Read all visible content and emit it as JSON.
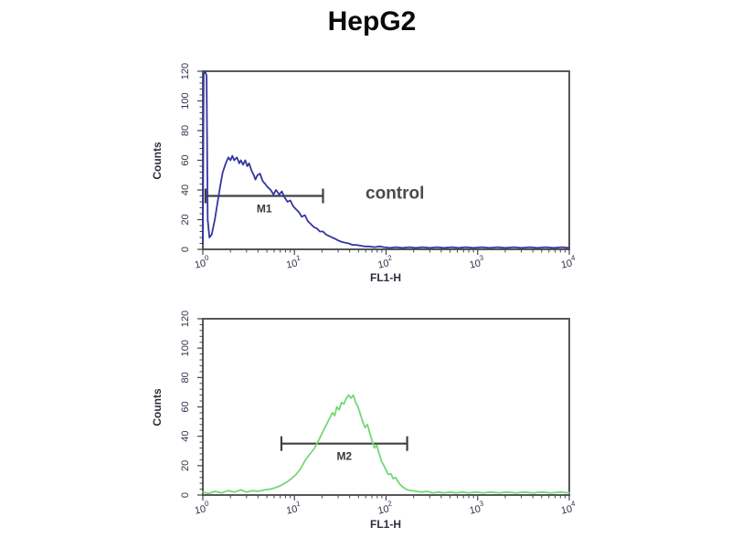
{
  "title": "HepG2",
  "colors": {
    "background": "#ffffff",
    "plot_border": "#575757",
    "axis": "#44444e",
    "marker": "#404040",
    "control_curve": "#3434a4",
    "sample_curve": "#74d874"
  },
  "chart_data": [
    {
      "type": "line",
      "panel": "top",
      "xlabel": "FL1-H",
      "ylabel": "Counts",
      "xscale": "log",
      "xlim": [
        1,
        10000
      ],
      "ylim": [
        0,
        120
      ],
      "x_tick_base": "10",
      "x_tick_exponents": [
        0,
        1,
        2,
        3,
        4
      ],
      "y_ticks": [
        0,
        20,
        40,
        60,
        80,
        100,
        120
      ],
      "y_minor_step": 4,
      "y_major_step": 20,
      "grid": false,
      "legend": false,
      "annotation": {
        "text": "control",
        "x": 125,
        "y": 38
      },
      "region_marker": {
        "label": "M1",
        "x_from": 1.07,
        "x_to": 20.5,
        "y": 36
      },
      "series": [
        {
          "name": "control",
          "color": "#3434a4",
          "points": [
            [
              1.0,
              4
            ],
            [
              1.02,
              118
            ],
            [
              1.06,
              120
            ],
            [
              1.1,
              117
            ],
            [
              1.13,
              20
            ],
            [
              1.18,
              8
            ],
            [
              1.25,
              10
            ],
            [
              1.35,
              20
            ],
            [
              1.45,
              32
            ],
            [
              1.55,
              43
            ],
            [
              1.65,
              52
            ],
            [
              1.78,
              58
            ],
            [
              1.9,
              62
            ],
            [
              2.0,
              60
            ],
            [
              2.1,
              63
            ],
            [
              2.2,
              60
            ],
            [
              2.35,
              62
            ],
            [
              2.5,
              58
            ],
            [
              2.6,
              60
            ],
            [
              2.75,
              57
            ],
            [
              2.9,
              60
            ],
            [
              3.05,
              56
            ],
            [
              3.2,
              58
            ],
            [
              3.4,
              53
            ],
            [
              3.6,
              50
            ],
            [
              3.75,
              47
            ],
            [
              3.95,
              50
            ],
            [
              4.2,
              51
            ],
            [
              4.5,
              46
            ],
            [
              4.8,
              44
            ],
            [
              5.1,
              42
            ],
            [
              5.5,
              40
            ],
            [
              5.9,
              37
            ],
            [
              6.3,
              40
            ],
            [
              6.8,
              37
            ],
            [
              7.3,
              39
            ],
            [
              7.8,
              35
            ],
            [
              8.4,
              32
            ],
            [
              9.0,
              33
            ],
            [
              9.7,
              29
            ],
            [
              10.4,
              27
            ],
            [
              11.2,
              25
            ],
            [
              12.0,
              22
            ],
            [
              13.0,
              23
            ],
            [
              14.0,
              19
            ],
            [
              15.1,
              17
            ],
            [
              16.3,
              15
            ],
            [
              17.6,
              14
            ],
            [
              19.0,
              12
            ],
            [
              20.5,
              12
            ],
            [
              22.1,
              10
            ],
            [
              23.9,
              9
            ],
            [
              25.8,
              8
            ],
            [
              28,
              7
            ],
            [
              30,
              6
            ],
            [
              33,
              5
            ],
            [
              36,
              4.5
            ],
            [
              39,
              4
            ],
            [
              43,
              3
            ],
            [
              47,
              3
            ],
            [
              52,
              2.5
            ],
            [
              58,
              2
            ],
            [
              65,
              2
            ],
            [
              75,
              1.5
            ],
            [
              85,
              2
            ],
            [
              95,
              1.5
            ],
            [
              110,
              1
            ],
            [
              130,
              1.5
            ],
            [
              150,
              1
            ],
            [
              180,
              1.5
            ],
            [
              210,
              1
            ],
            [
              250,
              1.5
            ],
            [
              300,
              1
            ],
            [
              360,
              1.5
            ],
            [
              430,
              1
            ],
            [
              520,
              1.5
            ],
            [
              620,
              1
            ],
            [
              750,
              1.5
            ],
            [
              900,
              1
            ],
            [
              1100,
              1.5
            ],
            [
              1350,
              1
            ],
            [
              1650,
              1.5
            ],
            [
              2000,
              1
            ],
            [
              2500,
              1.5
            ],
            [
              3000,
              1
            ],
            [
              3700,
              1.5
            ],
            [
              4500,
              1
            ],
            [
              5500,
              1.5
            ],
            [
              6800,
              1
            ],
            [
              8300,
              1.5
            ],
            [
              10000,
              1
            ]
          ]
        }
      ]
    },
    {
      "type": "line",
      "panel": "bottom",
      "xlabel": "FL1-H",
      "ylabel": "Counts",
      "xscale": "log",
      "xlim": [
        1,
        10000
      ],
      "ylim": [
        0,
        120
      ],
      "x_tick_base": "10",
      "x_tick_exponents": [
        0,
        1,
        2,
        3,
        4
      ],
      "y_ticks": [
        0,
        20,
        40,
        60,
        80,
        100,
        120
      ],
      "y_minor_step": 4,
      "y_major_step": 20,
      "grid": false,
      "legend": false,
      "annotation": null,
      "region_marker": {
        "label": "M2",
        "x_from": 7.2,
        "x_to": 170,
        "y": 35
      },
      "series": [
        {
          "color": "#74d874",
          "points": [
            [
              1.0,
              2
            ],
            [
              1.15,
              1
            ],
            [
              1.35,
              2.5
            ],
            [
              1.6,
              1.5
            ],
            [
              1.9,
              3
            ],
            [
              2.2,
              2
            ],
            [
              2.6,
              3.5
            ],
            [
              3.0,
              2
            ],
            [
              3.5,
              3
            ],
            [
              4.0,
              2.5
            ],
            [
              4.7,
              3.5
            ],
            [
              5.4,
              4
            ],
            [
              6.2,
              5
            ],
            [
              7.1,
              6.5
            ],
            [
              8.1,
              8.5
            ],
            [
              9.2,
              11
            ],
            [
              10.4,
              14
            ],
            [
              11.7,
              18
            ],
            [
              13.2,
              24
            ],
            [
              14.8,
              28
            ],
            [
              16.6,
              32
            ],
            [
              18.6,
              38
            ],
            [
              20.8,
              44
            ],
            [
              23.2,
              50
            ],
            [
              25.9,
              56
            ],
            [
              27.5,
              54
            ],
            [
              29.0,
              60
            ],
            [
              30.8,
              58
            ],
            [
              32.7,
              63
            ],
            [
              34.7,
              62
            ],
            [
              36.8,
              66
            ],
            [
              39.0,
              68
            ],
            [
              41.4,
              66
            ],
            [
              43.9,
              68
            ],
            [
              46.6,
              63
            ],
            [
              49.4,
              60
            ],
            [
              52.4,
              55
            ],
            [
              55.6,
              50
            ],
            [
              59.0,
              46
            ],
            [
              62.6,
              48
            ],
            [
              66.4,
              42
            ],
            [
              70.4,
              37
            ],
            [
              74.7,
              32
            ],
            [
              79.2,
              34
            ],
            [
              84.1,
              28
            ],
            [
              89.2,
              23
            ],
            [
              94.6,
              20
            ],
            [
              100,
              17
            ],
            [
              106,
              14
            ],
            [
              113,
              14.5
            ],
            [
              120,
              11
            ],
            [
              127,
              12
            ],
            [
              135,
              9
            ],
            [
              143,
              7
            ],
            [
              152,
              5.5
            ],
            [
              161,
              4.5
            ],
            [
              171,
              3.5
            ],
            [
              190,
              3
            ],
            [
              215,
              2.5
            ],
            [
              245,
              2
            ],
            [
              280,
              2.5
            ],
            [
              320,
              1.5
            ],
            [
              370,
              2
            ],
            [
              430,
              1.5
            ],
            [
              500,
              2
            ],
            [
              580,
              1.5
            ],
            [
              680,
              2
            ],
            [
              800,
              1.5
            ],
            [
              950,
              2
            ],
            [
              1150,
              1.5
            ],
            [
              1400,
              2
            ],
            [
              1700,
              1.5
            ],
            [
              2100,
              2
            ],
            [
              2600,
              1.5
            ],
            [
              3200,
              2
            ],
            [
              4000,
              1.5
            ],
            [
              5000,
              2
            ],
            [
              6300,
              1.5
            ],
            [
              8000,
              2
            ],
            [
              10000,
              1.5
            ]
          ]
        }
      ]
    }
  ]
}
